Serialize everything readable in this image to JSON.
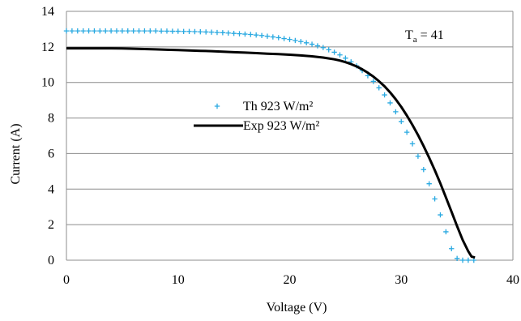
{
  "chart_data": {
    "type": "line",
    "xlabel": "Voltage (V)",
    "ylabel": "Current (A)",
    "xlim": [
      0,
      40
    ],
    "ylim": [
      0,
      14
    ],
    "xticks": [
      0,
      10,
      20,
      30,
      40
    ],
    "yticks": [
      0,
      2,
      4,
      6,
      8,
      10,
      12,
      14
    ],
    "grid": "horizontal",
    "legend_position": "center-left",
    "annotation": {
      "base": "T",
      "sub": "a",
      "rest": " = 41"
    },
    "series": [
      {
        "name": "Th 923 W/m²",
        "style": "plus-markers",
        "color": "#29a9e1",
        "x": [
          0,
          0.5,
          1,
          1.5,
          2,
          2.5,
          3,
          3.5,
          4,
          4.5,
          5,
          5.5,
          6,
          6.5,
          7,
          7.5,
          8,
          8.5,
          9,
          9.5,
          10,
          10.5,
          11,
          11.5,
          12,
          12.5,
          13,
          13.5,
          14,
          14.5,
          15,
          15.5,
          16,
          16.5,
          17,
          17.5,
          18,
          18.5,
          19,
          19.5,
          20,
          20.5,
          21,
          21.5,
          22,
          22.5,
          23,
          23.5,
          24,
          24.5,
          25,
          25.5,
          26,
          26.5,
          27,
          27.5,
          28,
          28.5,
          29,
          29.5,
          30,
          30.5,
          31,
          31.5,
          32,
          32.5,
          33,
          33.5,
          34,
          34.5,
          35,
          35.5,
          36,
          36.5
        ],
        "y": [
          12.9,
          12.9,
          12.9,
          12.9,
          12.9,
          12.9,
          12.9,
          12.9,
          12.9,
          12.9,
          12.9,
          12.9,
          12.9,
          12.9,
          12.9,
          12.9,
          12.9,
          12.89,
          12.89,
          12.88,
          12.88,
          12.87,
          12.87,
          12.86,
          12.85,
          12.84,
          12.83,
          12.81,
          12.8,
          12.78,
          12.76,
          12.74,
          12.72,
          12.7,
          12.67,
          12.64,
          12.6,
          12.56,
          12.52,
          12.47,
          12.42,
          12.36,
          12.3,
          12.23,
          12.15,
          12.06,
          11.96,
          11.84,
          11.7,
          11.55,
          11.37,
          11.16,
          10.93,
          10.67,
          10.38,
          10.06,
          9.7,
          9.3,
          8.85,
          8.35,
          7.8,
          7.2,
          6.55,
          5.85,
          5.1,
          4.3,
          3.45,
          2.55,
          1.6,
          0.65,
          0.1,
          0.0,
          0.0,
          0.0
        ]
      },
      {
        "name": "Exp 923 W/m²",
        "style": "solid-line",
        "color": "#000000",
        "x": [
          0,
          1,
          2,
          3,
          4,
          5,
          6,
          7,
          8,
          9,
          10,
          11,
          12,
          13,
          14,
          15,
          16,
          17,
          18,
          19,
          20,
          21,
          22,
          23,
          24,
          24.5,
          25,
          25.5,
          26,
          26.5,
          27,
          27.5,
          28,
          28.5,
          29,
          29.5,
          30,
          30.5,
          31,
          31.5,
          32,
          32.5,
          33,
          33.5,
          34,
          34.5,
          35,
          35.5,
          36,
          36.3,
          36.6
        ],
        "y": [
          11.92,
          11.92,
          11.92,
          11.92,
          11.92,
          11.91,
          11.9,
          11.88,
          11.86,
          11.84,
          11.82,
          11.8,
          11.78,
          11.76,
          11.73,
          11.7,
          11.68,
          11.65,
          11.62,
          11.59,
          11.56,
          11.52,
          11.47,
          11.4,
          11.3,
          11.23,
          11.14,
          11.03,
          10.9,
          10.74,
          10.55,
          10.33,
          10.07,
          9.78,
          9.44,
          9.05,
          8.62,
          8.14,
          7.61,
          7.04,
          6.42,
          5.76,
          5.06,
          4.32,
          3.54,
          2.73,
          1.92,
          1.14,
          0.5,
          0.2,
          0.15
        ]
      }
    ]
  }
}
